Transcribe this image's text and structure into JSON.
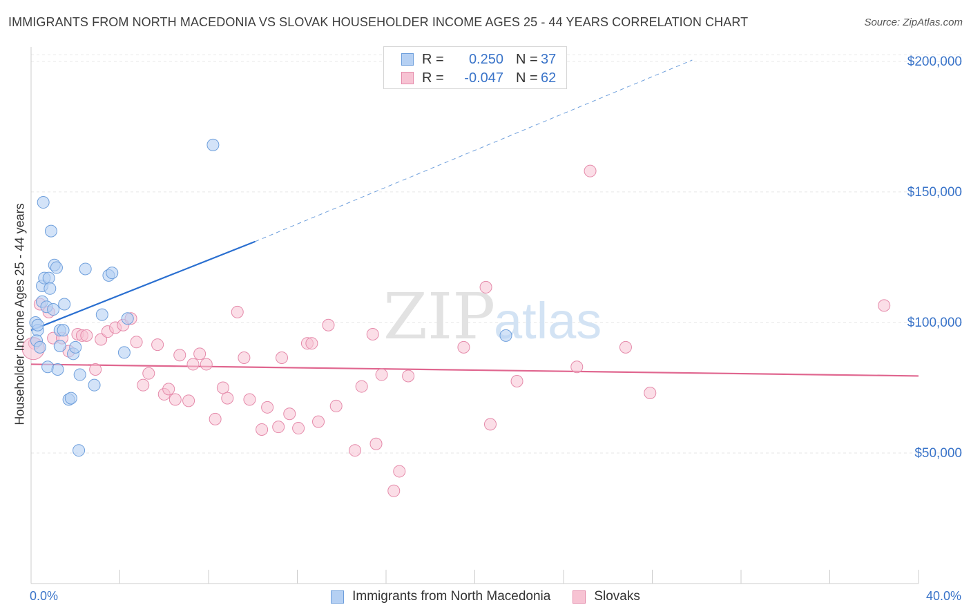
{
  "title": "IMMIGRANTS FROM NORTH MACEDONIA VS SLOVAK HOUSEHOLDER INCOME AGES 25 - 44 YEARS CORRELATION CHART",
  "source": "Source: ZipAtlas.com",
  "watermark": {
    "zip": "ZIP",
    "atlas": "atlas"
  },
  "legend": {
    "r_label": "R =",
    "n_label": "N =",
    "series1": {
      "r": "0.250",
      "n": "37"
    },
    "series2": {
      "r": "-0.047",
      "n": "62"
    }
  },
  "bottom_legend": {
    "series1": "Immigrants from North Macedonia",
    "series2": "Slovaks"
  },
  "colors": {
    "blue_fill": "#b5d0f3",
    "blue_stroke": "#6e9fdc",
    "blue_line": "#2a6fd0",
    "pink_fill": "#f7c3d3",
    "pink_stroke": "#e58aaa",
    "pink_line": "#e0668f",
    "axis_label": "#3a74c9",
    "grid": "#e6e6e6"
  },
  "chart_data": {
    "type": "scatter",
    "title": "IMMIGRANTS FROM NORTH MACEDONIA VS SLOVAK HOUSEHOLDER INCOME AGES 25 - 44 YEARS CORRELATION CHART",
    "xlabel": "",
    "ylabel": "Householder Income Ages 25 - 44 years",
    "xlim": [
      0,
      40
    ],
    "ylim": [
      0,
      205000
    ],
    "x_tick_labels": [
      "0.0%",
      "40.0%"
    ],
    "y_ticks": [
      {
        "value": 50000,
        "label": "$50,000"
      },
      {
        "value": 100000,
        "label": "$100,000"
      },
      {
        "value": 150000,
        "label": "$150,000"
      },
      {
        "value": 200000,
        "label": "$200,000"
      }
    ],
    "series": [
      {
        "name": "Immigrants from North Macedonia",
        "color": "blue",
        "trend": {
          "x0": 0,
          "y0": 97000,
          "x_solid_end": 10.1,
          "y_solid_end": 131000,
          "x1": 29.8,
          "y1": 200500
        },
        "points": [
          [
            0.2,
            100000
          ],
          [
            0.3,
            97000
          ],
          [
            0.25,
            93000
          ],
          [
            0.3,
            99000
          ],
          [
            0.4,
            90500
          ],
          [
            0.5,
            114000
          ],
          [
            0.5,
            108000
          ],
          [
            0.55,
            146000
          ],
          [
            0.6,
            117000
          ],
          [
            0.7,
            106000
          ],
          [
            0.75,
            83000
          ],
          [
            0.8,
            117000
          ],
          [
            0.85,
            113000
          ],
          [
            0.9,
            135000
          ],
          [
            1.0,
            105000
          ],
          [
            1.05,
            122000
          ],
          [
            1.15,
            121000
          ],
          [
            1.2,
            82000
          ],
          [
            1.3,
            91000
          ],
          [
            1.3,
            97000
          ],
          [
            1.45,
            97000
          ],
          [
            1.5,
            107000
          ],
          [
            1.7,
            70500
          ],
          [
            1.8,
            71000
          ],
          [
            1.9,
            88000
          ],
          [
            2.0,
            90500
          ],
          [
            2.15,
            51000
          ],
          [
            2.2,
            80000
          ],
          [
            2.45,
            120500
          ],
          [
            2.85,
            76000
          ],
          [
            3.2,
            103000
          ],
          [
            3.5,
            118000
          ],
          [
            3.65,
            119000
          ],
          [
            4.2,
            88500
          ],
          [
            4.35,
            101500
          ],
          [
            8.2,
            168000
          ],
          [
            21.4,
            95000
          ]
        ]
      },
      {
        "name": "Slovaks",
        "color": "pink",
        "trend": {
          "x0": 0,
          "y0": 84000,
          "x1": 40,
          "y1": 79500
        },
        "points": [
          [
            0.15,
            92000
          ],
          [
            0.4,
            107000
          ],
          [
            0.8,
            104000
          ],
          [
            1.0,
            94000
          ],
          [
            1.4,
            94000
          ],
          [
            1.7,
            89000
          ],
          [
            2.1,
            95500
          ],
          [
            2.3,
            95000
          ],
          [
            2.5,
            95000
          ],
          [
            2.9,
            82000
          ],
          [
            3.15,
            93500
          ],
          [
            3.45,
            96500
          ],
          [
            3.8,
            98000
          ],
          [
            4.15,
            99000
          ],
          [
            4.5,
            101500
          ],
          [
            4.75,
            92500
          ],
          [
            5.05,
            76000
          ],
          [
            5.3,
            80500
          ],
          [
            5.7,
            91500
          ],
          [
            6.0,
            72500
          ],
          [
            6.2,
            74500
          ],
          [
            6.5,
            70500
          ],
          [
            6.7,
            87500
          ],
          [
            7.1,
            70000
          ],
          [
            7.3,
            84000
          ],
          [
            7.6,
            88000
          ],
          [
            7.9,
            84000
          ],
          [
            8.3,
            63000
          ],
          [
            8.65,
            75000
          ],
          [
            8.85,
            71000
          ],
          [
            9.3,
            104000
          ],
          [
            9.6,
            86500
          ],
          [
            9.85,
            70500
          ],
          [
            10.4,
            59000
          ],
          [
            10.65,
            67500
          ],
          [
            11.15,
            60000
          ],
          [
            11.3,
            86500
          ],
          [
            11.65,
            65000
          ],
          [
            12.05,
            59500
          ],
          [
            12.45,
            92000
          ],
          [
            12.65,
            92000
          ],
          [
            12.95,
            62000
          ],
          [
            13.4,
            99000
          ],
          [
            13.75,
            68000
          ],
          [
            14.6,
            51000
          ],
          [
            14.9,
            75500
          ],
          [
            15.4,
            95500
          ],
          [
            15.55,
            53500
          ],
          [
            15.8,
            80000
          ],
          [
            16.35,
            35500
          ],
          [
            16.6,
            43000
          ],
          [
            17.0,
            79500
          ],
          [
            19.5,
            90500
          ],
          [
            20.5,
            113500
          ],
          [
            20.7,
            61000
          ],
          [
            21.9,
            77500
          ],
          [
            24.6,
            83000
          ],
          [
            25.2,
            158000
          ],
          [
            26.8,
            90500
          ],
          [
            27.9,
            73000
          ],
          [
            38.45,
            106500
          ],
          [
            0.1,
            90000
          ]
        ]
      }
    ]
  }
}
